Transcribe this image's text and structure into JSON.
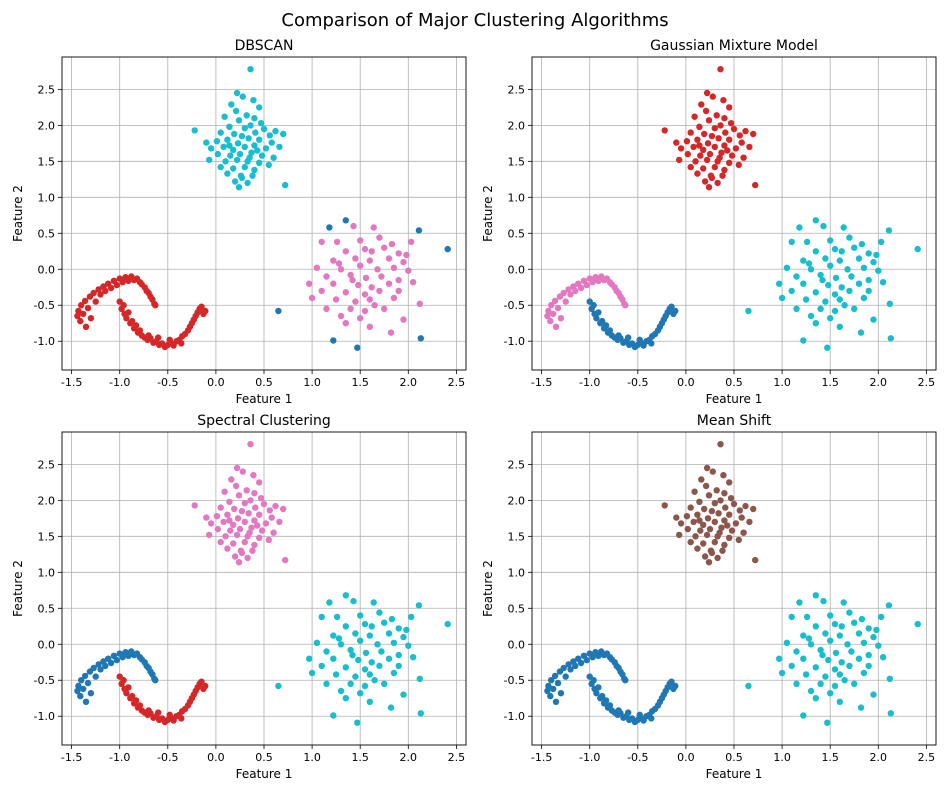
{
  "figure": {
    "title": "Comparison of Major Clustering Algorithms"
  },
  "palette": {
    "blue": "#1f77b4",
    "red": "#d62728",
    "pink": "#e377c2",
    "cyan": "#17becf",
    "brown": "#8c564b"
  },
  "chart_data": [
    {
      "type": "scatter",
      "title": "DBSCAN",
      "xlabel": "Feature 1",
      "ylabel": "Feature 2",
      "xlim": [
        -1.6,
        2.6
      ],
      "ylim": [
        -1.4,
        2.95
      ],
      "xticks": [
        "-1.5",
        "-1.0",
        "-0.5",
        "0.0",
        "0.5",
        "1.0",
        "1.5",
        "2.0",
        "2.5"
      ],
      "yticks": [
        "-1.0",
        "-0.5",
        "0.0",
        "0.5",
        "1.0",
        "1.5",
        "2.0",
        "2.5"
      ],
      "grid": true,
      "clusters": {
        "blob_top": "cyan",
        "blob_right": "pink",
        "moon_left": "red",
        "moon_right": "red",
        "outliers": "blue"
      }
    },
    {
      "type": "scatter",
      "title": "Gaussian Mixture Model",
      "xlabel": "Feature 1",
      "ylabel": "Feature 2",
      "xlim": [
        -1.6,
        2.6
      ],
      "ylim": [
        -1.4,
        2.95
      ],
      "xticks": [
        "-1.5",
        "-1.0",
        "-0.5",
        "0.0",
        "0.5",
        "1.0",
        "1.5",
        "2.0",
        "2.5"
      ],
      "yticks": [
        "-1.0",
        "-0.5",
        "0.0",
        "0.5",
        "1.0",
        "1.5",
        "2.0",
        "2.5"
      ],
      "grid": true,
      "clusters": {
        "blob_top": "red",
        "blob_right": "cyan",
        "moon_left": "pink",
        "moon_right": "blue",
        "outliers": "cyan"
      }
    },
    {
      "type": "scatter",
      "title": "Spectral Clustering",
      "xlabel": "Feature 1",
      "ylabel": "Feature 2",
      "xlim": [
        -1.6,
        2.6
      ],
      "ylim": [
        -1.4,
        2.95
      ],
      "xticks": [
        "-1.5",
        "-1.0",
        "-0.5",
        "0.0",
        "0.5",
        "1.0",
        "1.5",
        "2.0",
        "2.5"
      ],
      "yticks": [
        "-1.0",
        "-0.5",
        "0.0",
        "0.5",
        "1.0",
        "1.5",
        "2.0",
        "2.5"
      ],
      "grid": true,
      "clusters": {
        "blob_top": "pink",
        "blob_right": "cyan",
        "moon_left": "blue",
        "moon_right": "red",
        "outliers": "cyan"
      }
    },
    {
      "type": "scatter",
      "title": "Mean Shift",
      "xlabel": "Feature 1",
      "ylabel": "Feature 2",
      "xlim": [
        -1.6,
        2.6
      ],
      "ylim": [
        -1.4,
        2.95
      ],
      "xticks": [
        "-1.5",
        "-1.0",
        "-0.5",
        "0.0",
        "0.5",
        "1.0",
        "1.5",
        "2.0",
        "2.5"
      ],
      "yticks": [
        "-1.0",
        "-0.5",
        "0.0",
        "0.5",
        "1.0",
        "1.5",
        "2.0",
        "2.5"
      ],
      "grid": true,
      "clusters": {
        "blob_top": "brown",
        "blob_right": "cyan",
        "moon_left": "blue",
        "moon_right": "blue",
        "outliers": "cyan"
      }
    }
  ],
  "points": {
    "blob_top": [
      [
        0.36,
        2.78
      ],
      [
        0.22,
        2.45
      ],
      [
        0.39,
        2.35
      ],
      [
        0.28,
        2.4
      ],
      [
        0.16,
        2.29
      ],
      [
        0.45,
        2.25
      ],
      [
        0.21,
        2.2
      ],
      [
        0.32,
        2.14
      ],
      [
        0.09,
        2.12
      ],
      [
        0.4,
        2.1
      ],
      [
        0.24,
        2.07
      ],
      [
        0.47,
        2.03
      ],
      [
        -0.22,
        1.93
      ],
      [
        0.14,
        1.98
      ],
      [
        0.3,
        1.96
      ],
      [
        0.36,
        2.0
      ],
      [
        0.5,
        1.95
      ],
      [
        0.62,
        1.92
      ],
      [
        0.7,
        1.88
      ],
      [
        0.05,
        1.9
      ],
      [
        0.19,
        1.88
      ],
      [
        0.27,
        1.85
      ],
      [
        0.41,
        1.9
      ],
      [
        0.56,
        1.86
      ],
      [
        -0.1,
        1.76
      ],
      [
        0.01,
        1.78
      ],
      [
        0.12,
        1.8
      ],
      [
        0.23,
        1.75
      ],
      [
        0.34,
        1.82
      ],
      [
        0.45,
        1.8
      ],
      [
        0.58,
        1.76
      ],
      [
        -0.05,
        1.68
      ],
      [
        0.08,
        1.7
      ],
      [
        0.18,
        1.66
      ],
      [
        0.3,
        1.7
      ],
      [
        0.4,
        1.72
      ],
      [
        0.52,
        1.68
      ],
      [
        0.66,
        1.7
      ],
      [
        0.02,
        1.6
      ],
      [
        0.15,
        1.58
      ],
      [
        0.25,
        1.6
      ],
      [
        0.37,
        1.62
      ],
      [
        0.48,
        1.58
      ],
      [
        0.6,
        1.55
      ],
      [
        -0.07,
        1.52
      ],
      [
        0.1,
        1.5
      ],
      [
        0.22,
        1.52
      ],
      [
        0.33,
        1.5
      ],
      [
        0.45,
        1.48
      ],
      [
        0.55,
        1.45
      ],
      [
        0.05,
        1.42
      ],
      [
        0.18,
        1.4
      ],
      [
        0.3,
        1.42
      ],
      [
        0.4,
        1.38
      ],
      [
        0.12,
        1.33
      ],
      [
        0.26,
        1.3
      ],
      [
        0.38,
        1.3
      ],
      [
        0.2,
        1.22
      ],
      [
        0.33,
        1.2
      ],
      [
        0.24,
        1.14
      ],
      [
        0.72,
        1.17
      ],
      [
        0.35,
        1.55
      ],
      [
        0.27,
        1.27
      ],
      [
        0.14,
        1.72
      ],
      [
        0.43,
        1.65
      ]
    ],
    "blob_right": [
      [
        1.43,
        0.6
      ],
      [
        1.64,
        0.58
      ],
      [
        1.1,
        0.38
      ],
      [
        1.26,
        0.38
      ],
      [
        1.5,
        0.4
      ],
      [
        1.7,
        0.44
      ],
      [
        1.83,
        0.35
      ],
      [
        2.03,
        0.38
      ],
      [
        1.35,
        0.25
      ],
      [
        1.55,
        0.28
      ],
      [
        1.62,
        0.25
      ],
      [
        1.9,
        0.22
      ],
      [
        1.22,
        0.12
      ],
      [
        1.45,
        0.15
      ],
      [
        1.6,
        0.12
      ],
      [
        1.8,
        0.15
      ],
      [
        1.95,
        0.1
      ],
      [
        1.05,
        0.02
      ],
      [
        1.3,
        0.0
      ],
      [
        1.5,
        0.05
      ],
      [
        1.68,
        0.0
      ],
      [
        1.85,
        0.02
      ],
      [
        2.0,
        -0.02
      ],
      [
        1.15,
        -0.1
      ],
      [
        1.4,
        -0.08
      ],
      [
        1.56,
        -0.12
      ],
      [
        1.72,
        -0.1
      ],
      [
        1.9,
        -0.15
      ],
      [
        0.97,
        -0.2
      ],
      [
        1.22,
        -0.2
      ],
      [
        1.48,
        -0.22
      ],
      [
        1.62,
        -0.25
      ],
      [
        1.8,
        -0.2
      ],
      [
        2.05,
        -0.18
      ],
      [
        1.1,
        -0.3
      ],
      [
        1.35,
        -0.32
      ],
      [
        1.55,
        -0.35
      ],
      [
        1.7,
        -0.3
      ],
      [
        1.9,
        -0.3
      ],
      [
        1.0,
        -0.4
      ],
      [
        1.25,
        -0.42
      ],
      [
        1.45,
        -0.45
      ],
      [
        1.6,
        -0.42
      ],
      [
        1.85,
        -0.4
      ],
      [
        2.12,
        -0.48
      ],
      [
        1.15,
        -0.55
      ],
      [
        1.4,
        -0.55
      ],
      [
        1.55,
        -0.58
      ],
      [
        1.75,
        -0.55
      ],
      [
        1.3,
        -0.65
      ],
      [
        1.5,
        -0.68
      ],
      [
        1.95,
        -0.7
      ],
      [
        1.35,
        -0.75
      ],
      [
        1.6,
        -0.8
      ],
      [
        1.82,
        -0.88
      ],
      [
        1.65,
        -0.5
      ],
      [
        1.28,
        0.08
      ],
      [
        1.75,
        0.3
      ],
      [
        1.42,
        -0.15
      ],
      [
        1.98,
        0.2
      ]
    ],
    "outliers": [
      [
        1.35,
        0.68
      ],
      [
        1.18,
        0.58
      ],
      [
        2.11,
        0.54
      ],
      [
        2.41,
        0.28
      ],
      [
        0.65,
        -0.58
      ],
      [
        1.22,
        -0.99
      ],
      [
        1.47,
        -1.09
      ],
      [
        2.13,
        -0.96
      ]
    ],
    "moon_left": [
      [
        -1.44,
        -0.65
      ],
      [
        -1.43,
        -0.58
      ],
      [
        -1.41,
        -0.72
      ],
      [
        -1.4,
        -0.5
      ],
      [
        -1.38,
        -0.62
      ],
      [
        -1.36,
        -0.44
      ],
      [
        -1.35,
        -0.8
      ],
      [
        -1.33,
        -0.54
      ],
      [
        -1.31,
        -0.38
      ],
      [
        -1.3,
        -0.68
      ],
      [
        -1.27,
        -0.33
      ],
      [
        -1.25,
        -0.45
      ],
      [
        -1.22,
        -0.28
      ],
      [
        -1.2,
        -0.35
      ],
      [
        -1.17,
        -0.24
      ],
      [
        -1.15,
        -0.3
      ],
      [
        -1.12,
        -0.2
      ],
      [
        -1.09,
        -0.26
      ],
      [
        -1.06,
        -0.16
      ],
      [
        -1.03,
        -0.22
      ],
      [
        -1.0,
        -0.13
      ],
      [
        -0.97,
        -0.18
      ],
      [
        -0.94,
        -0.11
      ],
      [
        -0.91,
        -0.16
      ],
      [
        -0.88,
        -0.1
      ],
      [
        -0.85,
        -0.15
      ],
      [
        -0.82,
        -0.13
      ],
      [
        -0.79,
        -0.18
      ],
      [
        -0.77,
        -0.21
      ],
      [
        -0.74,
        -0.25
      ],
      [
        -0.72,
        -0.3
      ],
      [
        -0.7,
        -0.33
      ],
      [
        -0.68,
        -0.38
      ],
      [
        -0.66,
        -0.42
      ],
      [
        -0.64,
        -0.48
      ],
      [
        -0.63,
        -0.5
      ]
    ],
    "moon_right": [
      [
        -1.0,
        -0.45
      ],
      [
        -0.98,
        -0.55
      ],
      [
        -0.96,
        -0.5
      ],
      [
        -0.95,
        -0.62
      ],
      [
        -0.93,
        -0.68
      ],
      [
        -0.91,
        -0.6
      ],
      [
        -0.89,
        -0.75
      ],
      [
        -0.87,
        -0.72
      ],
      [
        -0.85,
        -0.82
      ],
      [
        -0.83,
        -0.78
      ],
      [
        -0.81,
        -0.88
      ],
      [
        -0.79,
        -0.85
      ],
      [
        -0.77,
        -0.92
      ],
      [
        -0.74,
        -0.95
      ],
      [
        -0.71,
        -0.98
      ],
      [
        -0.68,
        -0.96
      ],
      [
        -0.65,
        -1.02
      ],
      [
        -0.62,
        -1.0
      ],
      [
        -0.59,
        -1.05
      ],
      [
        -0.56,
        -1.03
      ],
      [
        -0.53,
        -1.08
      ],
      [
        -0.5,
        -1.05
      ],
      [
        -0.47,
        -1.02
      ],
      [
        -0.44,
        -1.06
      ],
      [
        -0.41,
        -1.0
      ],
      [
        -0.38,
        -0.98
      ],
      [
        -0.35,
        -0.93
      ],
      [
        -0.32,
        -0.9
      ],
      [
        -0.29,
        -0.85
      ],
      [
        -0.27,
        -0.8
      ],
      [
        -0.25,
        -0.75
      ],
      [
        -0.23,
        -0.7
      ],
      [
        -0.21,
        -0.65
      ],
      [
        -0.19,
        -0.6
      ],
      [
        -0.17,
        -0.55
      ],
      [
        -0.15,
        -0.52
      ],
      [
        -0.13,
        -0.62
      ],
      [
        -0.11,
        -0.58
      ],
      [
        -0.7,
        -0.92
      ],
      [
        -0.6,
        -0.95
      ],
      [
        -0.48,
        -0.98
      ],
      [
        -0.36,
        -1.03
      ]
    ]
  }
}
